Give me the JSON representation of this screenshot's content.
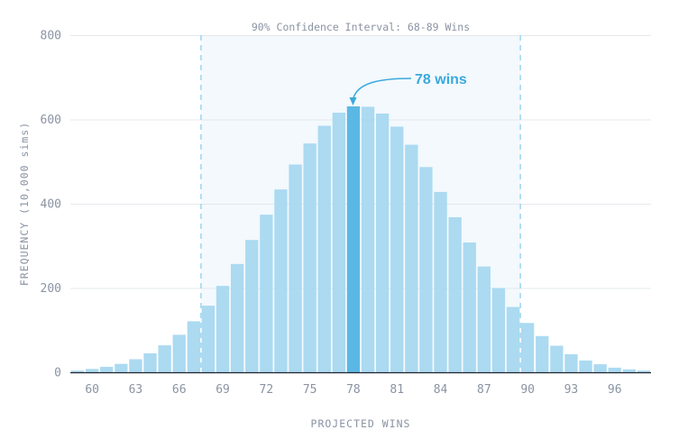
{
  "chart_data": {
    "type": "bar",
    "title": "",
    "xlabel": "PROJECTED WINS",
    "ylabel": "FREQUENCY (10,000 sims)",
    "ylim": [
      0,
      800
    ],
    "yticks": [
      0,
      200,
      400,
      600,
      800
    ],
    "xticks": [
      60,
      63,
      66,
      69,
      72,
      75,
      78,
      81,
      84,
      87,
      90,
      93,
      96
    ],
    "grid": true,
    "categories": [
      59,
      60,
      61,
      62,
      63,
      64,
      65,
      66,
      67,
      68,
      69,
      70,
      71,
      72,
      73,
      74,
      75,
      76,
      77,
      78,
      79,
      80,
      81,
      82,
      83,
      84,
      85,
      86,
      87,
      88,
      89,
      90,
      91,
      92,
      93,
      94,
      95,
      96,
      97,
      98
    ],
    "values": [
      4,
      8,
      13,
      20,
      31,
      45,
      64,
      89,
      121,
      158,
      205,
      257,
      314,
      374,
      434,
      493,
      543,
      585,
      616,
      631,
      630,
      614,
      583,
      540,
      487,
      428,
      368,
      308,
      251,
      200,
      155,
      117,
      86,
      63,
      43,
      28,
      19,
      11,
      7,
      4
    ],
    "highlight": {
      "category": 78,
      "label": "78 wins"
    },
    "confidence_interval": {
      "low": 68,
      "high": 89,
      "label": "90% Confidence Interval: 68-89 Wins"
    },
    "colors": {
      "bar": "#a7d8f0",
      "highlight": "#5bb8e4",
      "ci_fill": "#f3f9fd",
      "ci_line": "#8fcfee",
      "annotation": "#3aa9dd",
      "grid": "#e5e8ec",
      "axis": "#1f2430",
      "text": "#8a93a3"
    }
  }
}
